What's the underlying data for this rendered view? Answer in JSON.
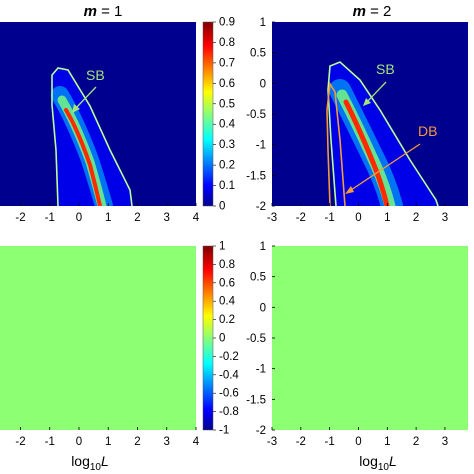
{
  "figure": {
    "title_left": "m = 1",
    "title_right": "m = 2",
    "title_var": "m",
    "title_left_val": " = 1",
    "title_right_val": " = 2",
    "xlabel_base": "log",
    "xlabel_sub": "10",
    "xlabel_var": "L"
  },
  "colors": {
    "background_blue": "#00008f",
    "uniform_green": "#8cff72",
    "sb_curve": "#b8ff9a",
    "db_curve": "#f39b3a",
    "sb_label": "#a4e37a",
    "db_label": "#f39b3a"
  },
  "chart_data": [
    {
      "type": "heatmap",
      "panel": "top-left",
      "title": "m = 1",
      "x_ticks": [
        "-2",
        "-1",
        "0",
        "1",
        "2",
        "3",
        "4"
      ],
      "xlim": [
        -2.7,
        4.0
      ],
      "ylim": [
        -2,
        1
      ],
      "colorbar": {
        "min": 0,
        "max": 0.9,
        "ticks": [
          "0.9",
          "0.8",
          "0.7",
          "0.6",
          "0.5",
          "0.4",
          "0.3",
          "0.2",
          "0.1",
          "0"
        ]
      },
      "annotations": [
        {
          "text": "SB",
          "color": "#a4e37a"
        }
      ],
      "curves": {
        "sb_boundary": [
          [
            -0.7,
            -2
          ],
          [
            -0.8,
            -1.5
          ],
          [
            -0.95,
            -0.9
          ],
          [
            -1.0,
            -0.5
          ],
          [
            -0.85,
            -0.2
          ],
          [
            -0.6,
            -0.25
          ],
          [
            0.0,
            -0.7
          ],
          [
            0.8,
            -1.35
          ],
          [
            1.6,
            -1.8
          ],
          [
            1.85,
            -2
          ]
        ],
        "ridge": [
          [
            -0.4,
            -0.4
          ],
          [
            0.0,
            -0.85
          ],
          [
            0.4,
            -1.3
          ],
          [
            0.75,
            -1.75
          ],
          [
            0.9,
            -2
          ]
        ]
      }
    },
    {
      "type": "heatmap",
      "panel": "top-right",
      "title": "m = 2",
      "x_ticks": [
        "-3",
        "-2",
        "-1",
        "0",
        "1",
        "2",
        "3"
      ],
      "y_ticks": [
        "1",
        "0.5",
        "0",
        "-0.5",
        "-1",
        "-1.5",
        "-2"
      ],
      "xlim": [
        -3.0,
        3.8
      ],
      "ylim": [
        -2,
        1
      ],
      "annotations": [
        {
          "text": "SB",
          "color": "#a4e37a"
        },
        {
          "text": "DB",
          "color": "#f39b3a"
        }
      ],
      "curves": {
        "sb_boundary": [
          [
            -0.85,
            -2
          ],
          [
            -0.95,
            -1.2
          ],
          [
            -1.05,
            -0.6
          ],
          [
            -1.0,
            0.0
          ],
          [
            -0.7,
            0.3
          ],
          [
            -0.3,
            0.1
          ],
          [
            0.4,
            -0.45
          ],
          [
            1.5,
            -1.2
          ],
          [
            2.3,
            -1.8
          ],
          [
            2.5,
            -2
          ]
        ],
        "db_boundary": [
          [
            -1.15,
            -2
          ],
          [
            -1.2,
            -1.3
          ],
          [
            -1.15,
            -0.5
          ],
          [
            -0.95,
            -0.1
          ],
          [
            -0.8,
            -0.6
          ],
          [
            -0.7,
            -1.2
          ],
          [
            -0.6,
            -2
          ]
        ],
        "ridge": [
          [
            -0.6,
            -0.2
          ],
          [
            0.0,
            -0.8
          ],
          [
            0.6,
            -1.4
          ],
          [
            1.1,
            -2
          ]
        ]
      }
    },
    {
      "type": "heatmap",
      "panel": "bottom-left",
      "x_ticks": [
        "-2",
        "-1",
        "0",
        "1",
        "2",
        "3",
        "4"
      ],
      "xlim": [
        -2.7,
        4.0
      ],
      "ylim": [
        -2,
        1
      ],
      "xlabel": "log10L",
      "value": 0,
      "colorbar": {
        "min": -1,
        "max": 1,
        "ticks": [
          "1",
          "0.8",
          "0.6",
          "0.4",
          "0.2",
          "0",
          "-0.2",
          "-0.4",
          "-0.6",
          "-0.8",
          "-1"
        ]
      }
    },
    {
      "type": "heatmap",
      "panel": "bottom-right",
      "x_ticks": [
        "-3",
        "-2",
        "-1",
        "0",
        "1",
        "2",
        "3"
      ],
      "y_ticks": [
        "1",
        "0.5",
        "0",
        "-0.5",
        "-1",
        "-1.5",
        "-2"
      ],
      "xlim": [
        -3.0,
        3.8
      ],
      "ylim": [
        -2,
        1
      ],
      "xlabel": "log10L",
      "value": 0
    }
  ]
}
